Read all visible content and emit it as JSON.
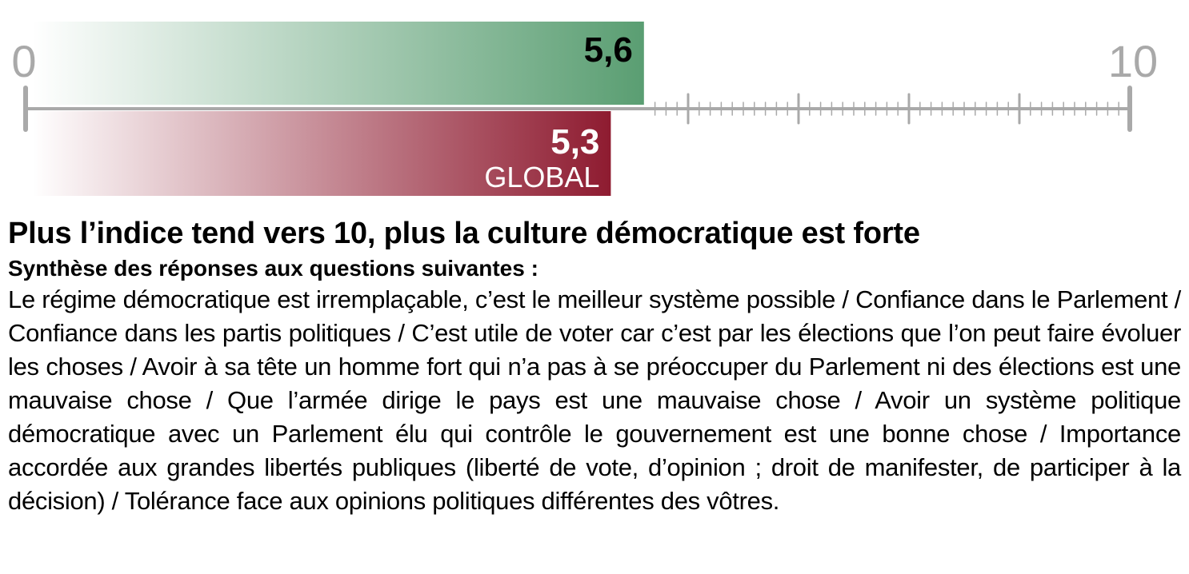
{
  "chart_data": {
    "type": "bar",
    "xlim": [
      0,
      10
    ],
    "ticks": {
      "start_label": "0",
      "end_label": "10"
    },
    "series": [
      {
        "value": 5.6,
        "label": "5,6",
        "sublabel": "",
        "color": "#5a9e72"
      },
      {
        "value": 5.3,
        "label": "5,3",
        "sublabel": "GLOBAL",
        "color": "#8e1b30"
      }
    ],
    "axis_color": "#a9a9a9",
    "grid": false
  },
  "caption": {
    "headline": "Plus l’indice tend vers 10, plus la culture démocratique est forte",
    "subhead": "Synthèse des réponses aux questions suivantes :",
    "body": "Le régime démocratique est irremplaçable, c’est le meilleur système possible / Confiance dans le Parlement / Confiance dans les partis politiques / C’est utile de voter car c’est par les élections que l’on peut faire évoluer les choses / Avoir à sa tête un homme fort qui n’a pas à se préoccuper du Parlement ni des élections est une mauvaise chose / Que l’armée dirige le pays est une mauvaise chose / Avoir un système politique démocratique avec un Parlement élu qui contrôle le gouvernement est une bonne chose / Importance accordée aux grandes libertés publiques (liberté de vote, d’opinion ; droit de manifester, de participer à la décision) / Tolérance face aux opinions politiques différentes des vôtres."
  }
}
